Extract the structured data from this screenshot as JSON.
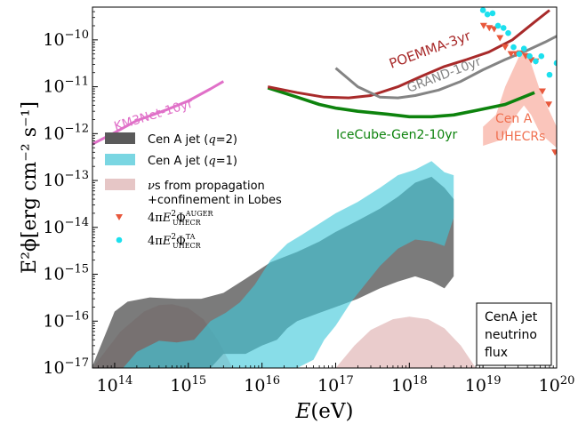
{
  "chart_data": {
    "type": "area",
    "xlabel": "E(eV)",
    "ylabel": "E²ϕ[erg cm⁻² s⁻¹]",
    "x_scale": "log",
    "y_scale": "log",
    "xlim": [
      50000000000000.0,
      1e+20
    ],
    "ylim": [
      1e-17,
      5e-10
    ],
    "x_ticks": [
      {
        "value": 100000000000000.0,
        "base": "10",
        "exp": "14"
      },
      {
        "value": 1000000000000000.0,
        "base": "10",
        "exp": "15"
      },
      {
        "value": 1e+16,
        "base": "10",
        "exp": "16"
      },
      {
        "value": 1e+17,
        "base": "10",
        "exp": "17"
      },
      {
        "value": 1e+18,
        "base": "10",
        "exp": "18"
      },
      {
        "value": 1e+19,
        "base": "10",
        "exp": "19"
      },
      {
        "value": 1e+20,
        "base": "10",
        "exp": "20"
      }
    ],
    "y_ticks": [
      {
        "value": 1e-17,
        "base": "10",
        "exp": "−17"
      },
      {
        "value": 1e-16,
        "base": "10",
        "exp": "−16"
      },
      {
        "value": 1e-15,
        "base": "10",
        "exp": "−15"
      },
      {
        "value": 1e-14,
        "base": "10",
        "exp": "−14"
      },
      {
        "value": 1e-13,
        "base": "10",
        "exp": "−13"
      },
      {
        "value": 1e-12,
        "base": "10",
        "exp": "−12"
      },
      {
        "value": 1e-11,
        "base": "10",
        "exp": "−11"
      },
      {
        "value": 1e-10,
        "base": "10",
        "exp": "−10"
      }
    ],
    "bands": [
      {
        "key": "lobes",
        "color": "#dcaaaa",
        "opacity": 0.6,
        "upper": [
          [
            50000000000000.0,
            1e-17
          ],
          [
            120000000000000.0,
            6e-17
          ],
          [
            250000000000000.0,
            1.6e-16
          ],
          [
            400000000000000.0,
            2.2e-16
          ],
          [
            600000000000000.0,
            2.3e-16
          ],
          [
            1000000000000000.0,
            1.9e-16
          ],
          [
            1600000000000000.0,
            1.1e-16
          ],
          [
            2500000000000000.0,
            4e-17
          ],
          [
            4000000000000000.0,
            1e-17
          ]
        ],
        "lower": [
          [
            50000000000000.0,
            1e-17
          ],
          [
            4000000000000000.0,
            1e-17
          ]
        ]
      },
      {
        "key": "lobes",
        "color": "#dcaaaa",
        "opacity": 0.6,
        "upper": [
          [
            1e+17,
            1e-17
          ],
          [
            1.8e+17,
            3e-17
          ],
          [
            3e+17,
            6.5e-17
          ],
          [
            6e+17,
            1.1e-16
          ],
          [
            1e+18,
            1.25e-16
          ],
          [
            1.8e+18,
            1.1e-16
          ],
          [
            3e+18,
            7e-17
          ],
          [
            5e+18,
            3e-17
          ],
          [
            8e+18,
            1e-17
          ]
        ],
        "lower": [
          [
            1e+17,
            1e-17
          ],
          [
            8e+18,
            1e-17
          ]
        ]
      },
      {
        "key": "cena_q2",
        "color": "#5a5a5a",
        "opacity": 0.8,
        "upper": [
          [
            50000000000000.0,
            1.1e-17
          ],
          [
            100000000000000.0,
            1.6e-16
          ],
          [
            150000000000000.0,
            2.6e-16
          ],
          [
            300000000000000.0,
            3.2e-16
          ],
          [
            700000000000000.0,
            3e-16
          ],
          [
            1500000000000000.0,
            3e-16
          ],
          [
            3000000000000000.0,
            4e-16
          ],
          [
            6000000000000000.0,
            8e-16
          ],
          [
            1.3e+16,
            1.8e-15
          ],
          [
            3e+16,
            3e-15
          ],
          [
            6e+16,
            5e-15
          ],
          [
            1e+17,
            8e-15
          ],
          [
            2e+17,
            1.4e-14
          ],
          [
            4e+17,
            2.5e-14
          ],
          [
            7e+17,
            4.5e-14
          ],
          [
            1.2e+18,
            9e-14
          ],
          [
            2e+18,
            1.2e-13
          ],
          [
            3e+18,
            7e-14
          ],
          [
            4e+18,
            4e-14
          ]
        ],
        "lower": [
          [
            50000000000000.0,
            1e-17
          ],
          [
            2000000000000000.0,
            1e-17
          ],
          [
            3000000000000000.0,
            2e-17
          ],
          [
            6000000000000000.0,
            2e-17
          ],
          [
            1e+16,
            3e-17
          ],
          [
            1.6e+16,
            4e-17
          ],
          [
            2.2e+16,
            7e-17
          ],
          [
            3e+16,
            1e-16
          ],
          [
            6e+16,
            1.5e-16
          ],
          [
            1e+17,
            2e-16
          ],
          [
            2e+17,
            3e-16
          ],
          [
            4e+17,
            5e-16
          ],
          [
            7e+17,
            7e-16
          ],
          [
            1.2e+18,
            9e-16
          ],
          [
            2e+18,
            7e-16
          ],
          [
            3e+18,
            5e-16
          ],
          [
            4e+18,
            9e-16
          ]
        ]
      },
      {
        "key": "cena_q1",
        "color": "#3fc8da",
        "opacity": 0.62,
        "upper": [
          [
            130000000000000.0,
            1e-17
          ],
          [
            200000000000000.0,
            2.2e-17
          ],
          [
            400000000000000.0,
            3.8e-17
          ],
          [
            700000000000000.0,
            3.5e-17
          ],
          [
            1200000000000000.0,
            4e-17
          ],
          [
            2000000000000000.0,
            1e-16
          ],
          [
            3200000000000000.0,
            1.5e-16
          ],
          [
            5000000000000000.0,
            2.5e-16
          ],
          [
            8000000000000000.0,
            6e-16
          ],
          [
            1.3e+16,
            2e-15
          ],
          [
            2.2e+16,
            4.5e-15
          ],
          [
            3.5e+16,
            7e-15
          ],
          [
            6e+16,
            1.2e-14
          ],
          [
            1e+17,
            2e-14
          ],
          [
            2e+17,
            3.5e-14
          ],
          [
            4e+17,
            7e-14
          ],
          [
            7e+17,
            1.3e-13
          ],
          [
            1.2e+18,
            1.7e-13
          ],
          [
            2e+18,
            2.6e-13
          ],
          [
            3e+18,
            1.5e-13
          ],
          [
            4e+18,
            1.3e-13
          ]
        ],
        "lower": [
          [
            130000000000000.0,
            1e-17
          ],
          [
            3e+16,
            1e-17
          ],
          [
            5e+16,
            1.5e-17
          ],
          [
            7e+16,
            4e-17
          ],
          [
            1e+17,
            8e-17
          ],
          [
            1.6e+17,
            2.5e-16
          ],
          [
            2.5e+17,
            6e-16
          ],
          [
            4e+17,
            1.5e-15
          ],
          [
            7e+17,
            3.5e-15
          ],
          [
            1.2e+18,
            5.5e-15
          ],
          [
            2e+18,
            5e-15
          ],
          [
            3e+18,
            4e-15
          ],
          [
            4e+18,
            1.6e-14
          ]
        ]
      },
      {
        "key": "uhecr",
        "color": "#f8b2a4",
        "opacity": 0.75,
        "upper": [
          [
            1e+19,
            1.4e-12
          ],
          [
            1.5e+19,
            2.5e-12
          ],
          [
            2e+19,
            1e-11
          ],
          [
            3e+19,
            4e-11
          ],
          [
            3.6e+19,
            7e-11
          ],
          [
            4e+19,
            5.5e-11
          ],
          [
            6e+19,
            8e-12
          ],
          [
            1e+20,
            1.4e-12
          ]
        ],
        "lower": [
          [
            1e+19,
            5.5e-13
          ],
          [
            1.6e+19,
            7e-13
          ],
          [
            2e+19,
            1e-12
          ],
          [
            3e+19,
            2.8e-12
          ],
          [
            3.6e+19,
            4e-12
          ],
          [
            4.5e+19,
            2.5e-12
          ],
          [
            6e+19,
            1e-12
          ],
          [
            1e+20,
            5e-13
          ]
        ]
      }
    ],
    "series": [
      {
        "key": "km3net",
        "color": "#e070c8",
        "width": 3,
        "values": [
          [
            50000000000000.0,
            6e-13
          ],
          [
            100000000000000.0,
            1.05e-12
          ],
          [
            200000000000000.0,
            1.9e-12
          ],
          [
            500000000000000.0,
            3.2e-12
          ],
          [
            1000000000000000.0,
            5e-12
          ],
          [
            2000000000000000.0,
            9e-12
          ],
          [
            3000000000000000.0,
            1.3e-11
          ]
        ]
      },
      {
        "key": "icecube",
        "color": "#0d830d",
        "width": 3.6,
        "values": [
          [
            1.2e+16,
            9.5e-12
          ],
          [
            3e+16,
            6e-12
          ],
          [
            6e+16,
            4.2e-12
          ],
          [
            1e+17,
            3.5e-12
          ],
          [
            2e+17,
            3e-12
          ],
          [
            5e+17,
            2.6e-12
          ],
          [
            1e+18,
            2.3e-12
          ],
          [
            2e+18,
            2.3e-12
          ],
          [
            4e+18,
            2.5e-12
          ],
          [
            8e+18,
            3.1e-12
          ],
          [
            2e+19,
            4.2e-12
          ],
          [
            5e+19,
            7.5e-12
          ]
        ]
      },
      {
        "key": "poemma",
        "color": "#a82a2a",
        "width": 3,
        "values": [
          [
            1.2e+16,
            1e-11
          ],
          [
            3e+16,
            7.5e-12
          ],
          [
            7e+16,
            6e-12
          ],
          [
            1.5e+17,
            5.8e-12
          ],
          [
            3e+17,
            6.5e-12
          ],
          [
            7e+17,
            1e-11
          ],
          [
            1.5e+18,
            1.7e-11
          ],
          [
            3e+18,
            2.7e-11
          ],
          [
            6e+18,
            3.8e-11
          ],
          [
            1.2e+19,
            5.5e-11
          ],
          [
            2.5e+19,
            1e-10
          ],
          [
            5e+19,
            2.4e-10
          ],
          [
            8e+19,
            4.3e-10
          ]
        ]
      },
      {
        "key": "grand",
        "color": "#848484",
        "width": 3,
        "values": [
          [
            1e+17,
            2.5e-11
          ],
          [
            2e+17,
            1e-11
          ],
          [
            4e+17,
            6e-12
          ],
          [
            7e+17,
            5.8e-12
          ],
          [
            1.2e+18,
            6.5e-12
          ],
          [
            2.5e+18,
            8.5e-12
          ],
          [
            5e+18,
            1.3e-11
          ],
          [
            1e+19,
            2.3e-11
          ],
          [
            2e+19,
            3.8e-11
          ],
          [
            4e+19,
            6e-11
          ],
          [
            7e+19,
            9e-11
          ],
          [
            1e+20,
            1.2e-10
          ]
        ]
      }
    ],
    "scatter": [
      {
        "key": "auger",
        "color": "#e8583c",
        "marker": "triangle-down",
        "values": [
          [
            1.02e+19,
            2e-10
          ],
          [
            1.22e+19,
            1.8e-10
          ],
          [
            1.42e+19,
            1.7e-10
          ],
          [
            1.7e+19,
            1.1e-10
          ],
          [
            2e+19,
            7e-11
          ],
          [
            2.4e+19,
            5e-11
          ],
          [
            2.8e+19,
            5e-11
          ],
          [
            3.2e+19,
            5.2e-11
          ],
          [
            3.8e+19,
            4.5e-11
          ],
          [
            4.5e+19,
            3.7e-11
          ],
          [
            5.2e+19,
            3.5e-11
          ],
          [
            6.4e+19,
            8e-12
          ],
          [
            7.8e+19,
            4.2e-12
          ],
          [
            9.5e+19,
            4e-13
          ]
        ]
      },
      {
        "key": "ta",
        "color": "#1ce0ee",
        "marker": "circle",
        "values": [
          [
            1e+19,
            4.3e-10
          ],
          [
            1.15e+19,
            3.5e-10
          ],
          [
            1.35e+19,
            3.7e-10
          ],
          [
            1.6e+19,
            2e-10
          ],
          [
            1.9e+19,
            1.8e-10
          ],
          [
            2.2e+19,
            1.4e-10
          ],
          [
            2.6e+19,
            7e-11
          ],
          [
            3.1e+19,
            5e-11
          ],
          [
            3.6e+19,
            6.5e-11
          ],
          [
            4.3e+19,
            4.5e-11
          ],
          [
            5.2e+19,
            3.5e-11
          ],
          [
            6.2e+19,
            4.5e-11
          ],
          [
            8e+19,
            1.8e-11
          ],
          [
            1e+20,
            3.2e-11
          ]
        ]
      }
    ],
    "annotations": {
      "km3net": "KM3Net-10yr",
      "icecube": "IceCube-Gen2-10yr",
      "poemma": "POEMMA-3yr",
      "grand": "GRAND-10yr",
      "cena_uhecr_line1": "Cen A",
      "cena_uhecr_line2": "UHECRs",
      "box_line1": "CenA jet",
      "box_line2": "neutrino",
      "box_line3": "flux"
    },
    "legend": {
      "placement": "middle-left",
      "items": [
        {
          "key": "cena_q2",
          "symbol": "patch",
          "color": "#5a5a5a",
          "label": "Cen A jet (q=2)",
          "parts": [
            {
              "t": "Cen A jet (",
              "f": "sans"
            },
            {
              "t": "q",
              "f": "serif",
              "i": true
            },
            {
              "t": "=2)",
              "f": "sans"
            }
          ]
        },
        {
          "key": "cena_q1",
          "symbol": "patch",
          "color": "#7ad6e2",
          "label": "Cen A jet (q=1)",
          "parts": [
            {
              "t": "Cen A jet (",
              "f": "sans"
            },
            {
              "t": "q",
              "f": "serif",
              "i": true
            },
            {
              "t": "=1)",
              "f": "sans"
            }
          ]
        },
        {
          "key": "lobes",
          "symbol": "patch",
          "color": "#e6c6c6",
          "label": "νs from propagation +confinement in Lobes",
          "parts": [
            {
              "t": "ν",
              "f": "serif",
              "i": true
            },
            {
              "t": "s from propagation",
              "f": "sans"
            }
          ],
          "line2": "+confinement in Lobes"
        },
        {
          "key": "auger",
          "symbol": "triangle-down",
          "color": "#e8583c",
          "label": "4πE²Φ UHECR AUGER",
          "math": {
            "pre": "4π",
            "e": "E",
            "sq": "2",
            "phi": "Φ",
            "sup": "AUGER",
            "sub": "UHECR"
          }
        },
        {
          "key": "ta",
          "symbol": "circle",
          "color": "#1ce0ee",
          "label": "4πE²Φ UHECR TA",
          "math": {
            "pre": "4π",
            "e": "E",
            "sq": "2",
            "phi": "Φ",
            "sup": "TA",
            "sub": "UHECR"
          }
        }
      ]
    }
  }
}
